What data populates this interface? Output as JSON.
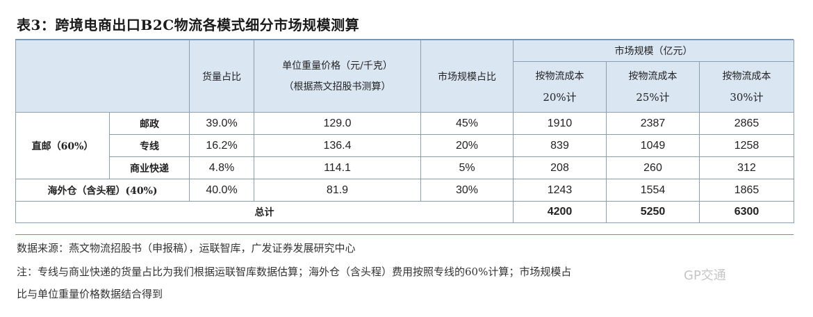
{
  "title": "表3：跨境电商出口B2C物流各模式细分市场规模测算",
  "header": {
    "share": "货量占比",
    "price_line1": "单位重量价格（元/千克）",
    "price_line2": "（根据燕文招股书测算）",
    "market_share": "市场规模占比",
    "market_size": "市场规模（亿元）",
    "c20_line1": "按物流成本",
    "c20_line2": "20%计",
    "c25_line1": "按物流成本",
    "c25_line2": "25%计",
    "c30_line1": "按物流成本",
    "c30_line2": "30%计"
  },
  "group_direct": "直邮（60%）",
  "rows": [
    {
      "name": "邮政",
      "share": "39.0%",
      "price": "129.0",
      "mshare": "45%",
      "c20": "1910",
      "c25": "2387",
      "c30": "2865"
    },
    {
      "name": "专线",
      "share": "16.2%",
      "price": "136.4",
      "mshare": "20%",
      "c20": "839",
      "c25": "1049",
      "c30": "1258"
    },
    {
      "name": "商业快递",
      "share": "4.8%",
      "price": "114.1",
      "mshare": "5%",
      "c20": "208",
      "c25": "260",
      "c30": "312"
    },
    {
      "name": "海外仓（含头程）(40%)",
      "share": "40.0%",
      "price": "81.9",
      "mshare": "30%",
      "c20": "1243",
      "c25": "1554",
      "c30": "1865"
    }
  ],
  "total": {
    "label": "总计",
    "c20": "4200",
    "c25": "5250",
    "c30": "6300"
  },
  "source": "数据来源：燕文物流招股书（申报稿），运联智库，广发证券发展研究中心",
  "note_line1": "注：专线与商业快递的货量占比为我们根据运联智库数据估算；海外仓（含头程）费用按照专线的60%计算；市场规模占",
  "note_line2": "比与单位重量价格数据结合得到",
  "watermark": "GP交通"
}
